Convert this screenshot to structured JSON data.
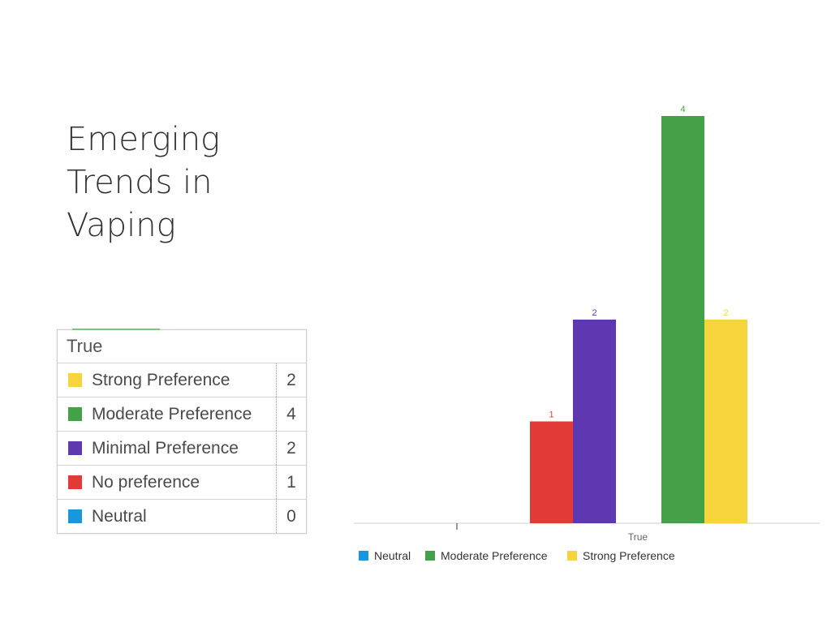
{
  "slide": {
    "title_lines": [
      "Emerging",
      "Trends in",
      "Vaping"
    ]
  },
  "table": {
    "header": "True",
    "rows": [
      {
        "label": "Strong Preference",
        "count": "2",
        "color": "#f7d43c"
      },
      {
        "label": "Moderate Preference",
        "count": "4",
        "color": "#44a147"
      },
      {
        "label": "Minimal Preference",
        "count": "2",
        "color": "#5e38b0"
      },
      {
        "label": "No preference",
        "count": "1",
        "color": "#e23a36"
      },
      {
        "label": "Neutral",
        "count": "0",
        "color": "#1a96dc"
      }
    ]
  },
  "chart_data": {
    "type": "bar",
    "categories": [
      "True"
    ],
    "ylim": [
      0,
      4
    ],
    "bars": [
      {
        "name": "No preference",
        "value": 1,
        "color": "#e23a36"
      },
      {
        "name": "Minimal Preference",
        "value": 2,
        "color": "#5e38b0"
      },
      {
        "name": "Moderate Preference",
        "value": 4,
        "color": "#44a147"
      },
      {
        "name": "Strong Preference",
        "value": 2,
        "color": "#f7d43c"
      }
    ],
    "xlabel": "True",
    "legend": [
      {
        "name": "Neutral",
        "color": "#1a96dc"
      },
      {
        "name": "Moderate Preference",
        "color": "#44a147"
      },
      {
        "name": "Strong Preference",
        "color": "#f7d43c"
      }
    ],
    "legend_position": "bottom",
    "grid": false
  }
}
